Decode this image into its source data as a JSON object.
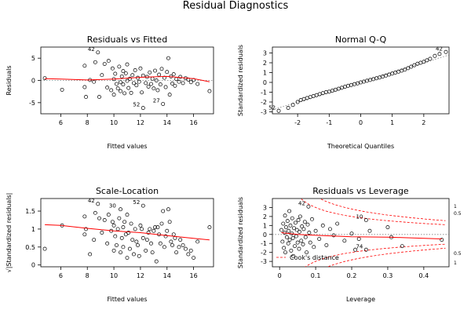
{
  "figure_title": "Residual Diagnostics",
  "colors": {
    "points": "#000000",
    "smooth": "#ff0000",
    "reference": "#808080",
    "axis": "#000000"
  },
  "chart_data": [
    {
      "type": "scatter",
      "title": "Residuals vs Fitted",
      "xlabel": "Fitted values",
      "ylabel": "Residuals",
      "xlim": [
        4.5,
        17.5
      ],
      "ylim": [
        -7.5,
        7.5
      ],
      "xticks": [
        6,
        8,
        10,
        12,
        14,
        16
      ],
      "yticks": [
        -5,
        0,
        5
      ],
      "hline": {
        "y": 0,
        "style": "dotted"
      },
      "points": [
        [
          4.8,
          0.5
        ],
        [
          6.1,
          -2.1
        ],
        [
          7.8,
          3.3
        ],
        [
          7.8,
          -1.5
        ],
        [
          7.9,
          -3.7
        ],
        [
          8.2,
          0.1
        ],
        [
          8.5,
          -0.3
        ],
        [
          8.6,
          4.1
        ],
        [
          8.8,
          6.3
        ],
        [
          8.9,
          -3.7
        ],
        [
          9.1,
          1.2
        ],
        [
          9.3,
          3.7
        ],
        [
          9.5,
          -1.6
        ],
        [
          9.6,
          4.4
        ],
        [
          9.8,
          -2.2
        ],
        [
          9.9,
          2.7
        ],
        [
          10.0,
          0.3
        ],
        [
          10.0,
          -3.2
        ],
        [
          10.1,
          1.5
        ],
        [
          10.2,
          -0.8
        ],
        [
          10.3,
          -1.8
        ],
        [
          10.4,
          3.1
        ],
        [
          10.5,
          -0.4
        ],
        [
          10.5,
          -2.4
        ],
        [
          10.6,
          0.9
        ],
        [
          10.7,
          2.1
        ],
        [
          10.7,
          -0.9
        ],
        [
          10.8,
          -2.9
        ],
        [
          10.9,
          1.6
        ],
        [
          11.0,
          -0.1
        ],
        [
          11.0,
          3.6
        ],
        [
          11.1,
          -1.7
        ],
        [
          11.2,
          0.4
        ],
        [
          11.3,
          -2.8
        ],
        [
          11.4,
          1.2
        ],
        [
          11.5,
          -0.6
        ],
        [
          11.6,
          2.3
        ],
        [
          11.7,
          -1.1
        ],
        [
          11.8,
          0.6
        ],
        [
          11.9,
          -0.3
        ],
        [
          12.0,
          2.7
        ],
        [
          12.1,
          -2.7
        ],
        [
          12.2,
          -6.2
        ],
        [
          12.2,
          1.1
        ],
        [
          12.4,
          -0.6
        ],
        [
          12.5,
          0.8
        ],
        [
          12.6,
          -1.4
        ],
        [
          12.7,
          1.8
        ],
        [
          12.8,
          -0.8
        ],
        [
          12.9,
          0.4
        ],
        [
          13.0,
          -1.8
        ],
        [
          13.1,
          2.2
        ],
        [
          13.2,
          0.0
        ],
        [
          13.3,
          -2.2
        ],
        [
          13.4,
          1.3
        ],
        [
          13.5,
          -0.9
        ],
        [
          13.6,
          2.6
        ],
        [
          13.7,
          -5.3
        ],
        [
          13.8,
          0.6
        ],
        [
          13.9,
          -1.5
        ],
        [
          14.0,
          1.9
        ],
        [
          14.1,
          5.0
        ],
        [
          14.2,
          -3.2
        ],
        [
          14.3,
          0.9
        ],
        [
          14.4,
          -0.7
        ],
        [
          14.5,
          1.4
        ],
        [
          14.6,
          -1.2
        ],
        [
          14.7,
          0.3
        ],
        [
          14.9,
          -0.3
        ],
        [
          15.0,
          0.8
        ],
        [
          15.2,
          -0.6
        ],
        [
          15.4,
          0.5
        ],
        [
          15.6,
          0.2
        ],
        [
          15.8,
          -0.4
        ],
        [
          16.0,
          0.1
        ],
        [
          16.3,
          -0.8
        ],
        [
          17.2,
          -2.4
        ]
      ],
      "smooth": [
        [
          4.8,
          0.4
        ],
        [
          6,
          0.3
        ],
        [
          8,
          0.1
        ],
        [
          10,
          0.3
        ],
        [
          12,
          0.7
        ],
        [
          14,
          0.9
        ],
        [
          16,
          0.4
        ],
        [
          17.2,
          -0.3
        ]
      ],
      "labels": [
        {
          "text": "42",
          "x": 8.8,
          "y": 6.3
        },
        {
          "text": "52",
          "x": 12.2,
          "y": -6.2
        },
        {
          "text": "27",
          "x": 13.7,
          "y": -5.3
        }
      ]
    },
    {
      "type": "scatter",
      "title": "Normal Q-Q",
      "xlabel": "Theoretical Quantiles",
      "ylabel": "Standardized residuals",
      "xlim": [
        -2.8,
        2.8
      ],
      "ylim": [
        -3.2,
        3.6
      ],
      "xticks": [
        -2,
        -1,
        0,
        1,
        2
      ],
      "yticks": [
        -3,
        -2,
        -1,
        0,
        1,
        2,
        3
      ],
      "refline": {
        "from": [
          -2.8,
          -2.8
        ],
        "to": [
          2.8,
          2.8
        ],
        "style": "dotted"
      },
      "points": [
        [
          -2.6,
          -2.9
        ],
        [
          -2.3,
          -2.6
        ],
        [
          -2.15,
          -2.3
        ],
        [
          -2.0,
          -2.0
        ],
        [
          -1.9,
          -1.8
        ],
        [
          -1.8,
          -1.7
        ],
        [
          -1.7,
          -1.6
        ],
        [
          -1.6,
          -1.5
        ],
        [
          -1.5,
          -1.4
        ],
        [
          -1.4,
          -1.3
        ],
        [
          -1.3,
          -1.2
        ],
        [
          -1.2,
          -1.1
        ],
        [
          -1.1,
          -1.0
        ],
        [
          -1.0,
          -0.95
        ],
        [
          -0.9,
          -0.85
        ],
        [
          -0.8,
          -0.75
        ],
        [
          -0.7,
          -0.65
        ],
        [
          -0.6,
          -0.55
        ],
        [
          -0.5,
          -0.45
        ],
        [
          -0.4,
          -0.35
        ],
        [
          -0.3,
          -0.27
        ],
        [
          -0.2,
          -0.18
        ],
        [
          -0.1,
          -0.1
        ],
        [
          0.0,
          0.0
        ],
        [
          0.1,
          0.08
        ],
        [
          0.2,
          0.17
        ],
        [
          0.3,
          0.25
        ],
        [
          0.4,
          0.33
        ],
        [
          0.5,
          0.42
        ],
        [
          0.6,
          0.5
        ],
        [
          0.7,
          0.6
        ],
        [
          0.8,
          0.7
        ],
        [
          0.9,
          0.8
        ],
        [
          1.0,
          0.9
        ],
        [
          1.1,
          1.0
        ],
        [
          1.2,
          1.1
        ],
        [
          1.3,
          1.2
        ],
        [
          1.4,
          1.3
        ],
        [
          1.5,
          1.45
        ],
        [
          1.6,
          1.6
        ],
        [
          1.7,
          1.75
        ],
        [
          1.8,
          1.9
        ],
        [
          1.9,
          2.0
        ],
        [
          2.0,
          2.1
        ],
        [
          2.1,
          2.25
        ],
        [
          2.2,
          2.4
        ],
        [
          2.35,
          2.7
        ],
        [
          2.5,
          2.9
        ],
        [
          2.7,
          3.1
        ]
      ],
      "labels": [
        {
          "text": "52",
          "x": -2.6,
          "y": -2.9
        },
        {
          "text": "42",
          "x": 2.7,
          "y": 3.1
        }
      ]
    },
    {
      "type": "scatter",
      "title": "Scale-Location",
      "xlabel": "Fitted values",
      "ylabel": "√|Standardized residuals|",
      "xlim": [
        4.5,
        17.5
      ],
      "ylim": [
        -0.05,
        1.85
      ],
      "xticks": [
        6,
        8,
        10,
        12,
        14,
        16
      ],
      "yticks": [
        0.0,
        0.5,
        1.0,
        1.5
      ],
      "points": [
        [
          4.8,
          0.45
        ],
        [
          6.1,
          1.1
        ],
        [
          7.8,
          1.35
        ],
        [
          7.8,
          0.85
        ],
        [
          7.9,
          1.0
        ],
        [
          8.2,
          0.3
        ],
        [
          8.5,
          0.7
        ],
        [
          8.6,
          1.45
        ],
        [
          8.8,
          1.7
        ],
        [
          8.9,
          1.3
        ],
        [
          9.1,
          0.9
        ],
        [
          9.3,
          1.25
        ],
        [
          9.5,
          0.6
        ],
        [
          9.6,
          1.4
        ],
        [
          9.8,
          0.95
        ],
        [
          9.9,
          1.2
        ],
        [
          10.0,
          0.4
        ],
        [
          10.0,
          1.1
        ],
        [
          10.1,
          0.8
        ],
        [
          10.2,
          0.55
        ],
        [
          10.3,
          1.0
        ],
        [
          10.4,
          1.3
        ],
        [
          10.5,
          0.35
        ],
        [
          10.5,
          1.55
        ],
        [
          10.6,
          0.75
        ],
        [
          10.7,
          1.05
        ],
        [
          10.7,
          0.5
        ],
        [
          10.8,
          1.2
        ],
        [
          10.9,
          0.85
        ],
        [
          11.0,
          0.2
        ],
        [
          11.0,
          1.4
        ],
        [
          11.1,
          0.9
        ],
        [
          11.2,
          0.45
        ],
        [
          11.3,
          1.15
        ],
        [
          11.4,
          0.7
        ],
        [
          11.5,
          0.3
        ],
        [
          11.6,
          1.0
        ],
        [
          11.7,
          0.65
        ],
        [
          11.8,
          0.55
        ],
        [
          11.9,
          0.25
        ],
        [
          12.0,
          1.1
        ],
        [
          12.1,
          1.0
        ],
        [
          12.2,
          1.65
        ],
        [
          12.2,
          0.75
        ],
        [
          12.4,
          0.4
        ],
        [
          12.5,
          0.7
        ],
        [
          12.6,
          0.9
        ],
        [
          12.7,
          1.0
        ],
        [
          12.8,
          0.6
        ],
        [
          12.9,
          0.35
        ],
        [
          13.0,
          0.95
        ],
        [
          13.1,
          1.05
        ],
        [
          13.2,
          0.1
        ],
        [
          13.3,
          1.05
        ],
        [
          13.4,
          0.85
        ],
        [
          13.5,
          0.6
        ],
        [
          13.6,
          1.15
        ],
        [
          13.7,
          1.5
        ],
        [
          13.8,
          0.5
        ],
        [
          13.9,
          0.8
        ],
        [
          14.0,
          0.95
        ],
        [
          14.1,
          1.55
        ],
        [
          14.2,
          1.2
        ],
        [
          14.3,
          0.65
        ],
        [
          14.4,
          0.55
        ],
        [
          14.5,
          0.85
        ],
        [
          14.6,
          0.75
        ],
        [
          14.7,
          0.35
        ],
        [
          14.9,
          0.5
        ],
        [
          15.0,
          0.7
        ],
        [
          15.2,
          0.55
        ],
        [
          15.4,
          0.45
        ],
        [
          15.6,
          0.3
        ],
        [
          15.8,
          0.4
        ],
        [
          16.0,
          0.2
        ],
        [
          16.3,
          0.65
        ],
        [
          17.2,
          1.05
        ]
      ],
      "smooth": [
        [
          4.8,
          1.12
        ],
        [
          6,
          1.1
        ],
        [
          8,
          1.02
        ],
        [
          10,
          0.95
        ],
        [
          12,
          0.9
        ],
        [
          14,
          0.82
        ],
        [
          16,
          0.74
        ],
        [
          17.2,
          0.7
        ]
      ],
      "labels": [
        {
          "text": "42",
          "x": 8.8,
          "y": 1.7
        },
        {
          "text": "30",
          "x": 10.4,
          "y": 1.55
        },
        {
          "text": "52",
          "x": 12.2,
          "y": 1.65
        }
      ]
    },
    {
      "type": "scatter",
      "title": "Residuals vs Leverage",
      "xlabel": "Leverage",
      "ylabel": "Standardized residuals",
      "xlim": [
        -0.02,
        0.47
      ],
      "ylim": [
        -3.6,
        4.0
      ],
      "xticks": [
        0.0,
        0.1,
        0.2,
        0.3,
        0.4
      ],
      "yticks": [
        -3,
        -2,
        -1,
        0,
        1,
        2,
        3
      ],
      "hline": {
        "y": 0,
        "style": "dotted"
      },
      "cooks_legend": "Cook's distance",
      "contour_labels_upper": [
        "1",
        "0.5"
      ],
      "contour_labels_lower": [
        "0.5",
        "1"
      ],
      "points": [
        [
          0.005,
          0.5
        ],
        [
          0.008,
          -0.8
        ],
        [
          0.01,
          1.2
        ],
        [
          0.012,
          -1.5
        ],
        [
          0.014,
          0.2
        ],
        [
          0.015,
          2.1
        ],
        [
          0.016,
          -2.0
        ],
        [
          0.018,
          0.8
        ],
        [
          0.02,
          -0.3
        ],
        [
          0.022,
          1.5
        ],
        [
          0.024,
          -1.0
        ],
        [
          0.025,
          0.4
        ],
        [
          0.027,
          2.6
        ],
        [
          0.028,
          -0.6
        ],
        [
          0.03,
          1.0
        ],
        [
          0.032,
          -1.8
        ],
        [
          0.034,
          0.1
        ],
        [
          0.035,
          1.8
        ],
        [
          0.037,
          -0.4
        ],
        [
          0.038,
          -2.4
        ],
        [
          0.04,
          0.7
        ],
        [
          0.042,
          -1.3
        ],
        [
          0.044,
          1.3
        ],
        [
          0.046,
          -0.2
        ],
        [
          0.048,
          0.5
        ],
        [
          0.05,
          -0.9
        ],
        [
          0.052,
          1.6
        ],
        [
          0.054,
          -1.6
        ],
        [
          0.055,
          0.3
        ],
        [
          0.057,
          2.0
        ],
        [
          0.06,
          -0.7
        ],
        [
          0.062,
          0.9
        ],
        [
          0.065,
          -1.1
        ],
        [
          0.067,
          0.6
        ],
        [
          0.07,
          1.4
        ],
        [
          0.072,
          -0.3
        ],
        [
          0.075,
          -2.0
        ],
        [
          0.078,
          1.1
        ],
        [
          0.08,
          3.1
        ],
        [
          0.082,
          0.2
        ],
        [
          0.085,
          -0.9
        ],
        [
          0.09,
          1.7
        ],
        [
          0.095,
          -1.4
        ],
        [
          0.1,
          0.4
        ],
        [
          0.11,
          -0.5
        ],
        [
          0.12,
          1.0
        ],
        [
          0.13,
          -1.2
        ],
        [
          0.14,
          0.6
        ],
        [
          0.15,
          -0.1
        ],
        [
          0.16,
          1.2
        ],
        [
          0.18,
          -0.7
        ],
        [
          0.2,
          0.1
        ],
        [
          0.21,
          -1.7
        ],
        [
          0.22,
          -0.5
        ],
        [
          0.24,
          1.6
        ],
        [
          0.24,
          -1.7
        ],
        [
          0.25,
          0.4
        ],
        [
          0.3,
          0.8
        ],
        [
          0.31,
          -0.3
        ],
        [
          0.34,
          -1.3
        ],
        [
          0.45,
          -0.6
        ]
      ],
      "smooth": [
        [
          0.005,
          0.2
        ],
        [
          0.05,
          0.0
        ],
        [
          0.1,
          -0.1
        ],
        [
          0.2,
          -0.25
        ],
        [
          0.3,
          -0.3
        ],
        [
          0.45,
          -0.5
        ]
      ],
      "labels": [
        {
          "text": "42",
          "x": 0.08,
          "y": 3.1
        },
        {
          "text": "10",
          "x": 0.24,
          "y": 1.6
        },
        {
          "text": "74",
          "x": 0.24,
          "y": -1.7
        }
      ]
    }
  ]
}
